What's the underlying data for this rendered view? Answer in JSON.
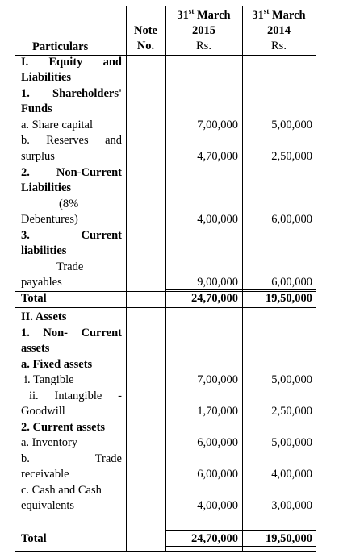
{
  "header": {
    "particulars": "Particulars",
    "note_line1": "Note",
    "note_line2": "No.",
    "col1_day": "31",
    "col1_sup": "st",
    "col1_month": "March",
    "col1_year": "2015",
    "col1_unit": "Rs.",
    "col2_day": "31",
    "col2_sup": "st",
    "col2_month": "March",
    "col2_year": "2014",
    "col2_unit": "Rs."
  },
  "section1": {
    "heading_a": "I.",
    "heading_b": "Equity",
    "heading_c": "and",
    "heading_line2": "Liabilities",
    "shareholders_a": "1.",
    "shareholders_b": "Shareholders'",
    "shareholders_line2": "Funds",
    "share_capital": "a. Share capital",
    "share_capital_2015": "7,00,000",
    "share_capital_2014": "5,00,000",
    "reserves_a": "b.",
    "reserves_b": "Reserves",
    "reserves_c": "and",
    "reserves_line2": "surplus",
    "reserves_2015": "4,70,000",
    "reserves_2014": "2,50,000",
    "noncurrent_a": "2.",
    "noncurrent_b": "Non-Current",
    "noncurrent_line2": "Liabilities",
    "debentures_line1": "(8%",
    "debentures_line2": "Debentures)",
    "debentures_2015": "4,00,000",
    "debentures_2014": "6,00,000",
    "current_a": "3.",
    "current_b": "Current",
    "current_line2": "liabilities",
    "trade_line1": "Trade",
    "trade_line2": "payables",
    "trade_2015": "9,00,000",
    "trade_2014": "6,00,000",
    "total_label": "Total",
    "total_2015": "24,70,000",
    "total_2014": "19,50,000"
  },
  "section2": {
    "heading": "II. Assets",
    "noncurrent_a": "1.",
    "noncurrent_b": "Non-",
    "noncurrent_c": "Current",
    "noncurrent_line2": "assets",
    "fixed": "a. Fixed assets",
    "tangible": "i. Tangible",
    "tangible_2015": "7,00,000",
    "tangible_2014": "5,00,000",
    "intangible_a": "ii.",
    "intangible_b": "Intangible",
    "intangible_c": "-",
    "intangible_line2": "Goodwill",
    "intangible_2015": "1,70,000",
    "intangible_2014": "2,50,000",
    "current_assets": "2. Current assets",
    "inventory": "a. Inventory",
    "inventory_2015": "6,00,000",
    "inventory_2014": "5,00,000",
    "receivable_a": "b.",
    "receivable_b": "Trade",
    "receivable_line2": "receivable",
    "receivable_2015": "6,00,000",
    "receivable_2014": "4,00,000",
    "cash_line1": "c. Cash and Cash",
    "cash_line2": "equivalents",
    "cash_2015": "4,00,000",
    "cash_2014": "3,00,000",
    "total_label": "Total",
    "total_2015": "24,70,000",
    "total_2014": "19,50,000"
  }
}
